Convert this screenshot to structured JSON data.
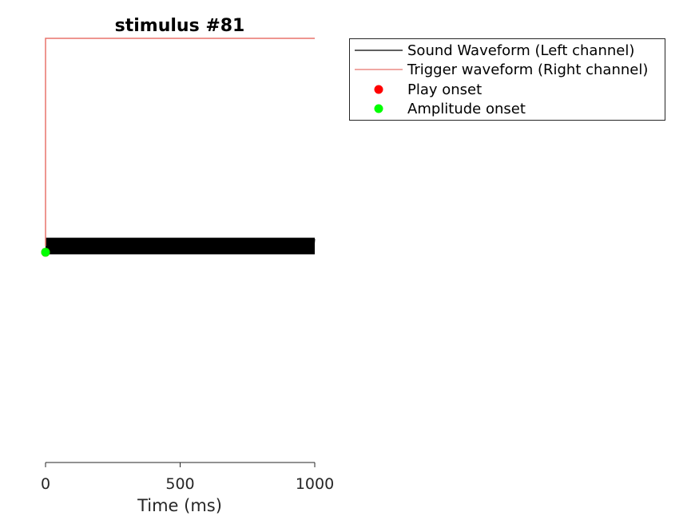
{
  "chart_data": {
    "type": "line",
    "title": "stimulus #81",
    "xlabel": "Time (ms)",
    "ylabel": "",
    "xlim": [
      0,
      1000
    ],
    "ylim": [
      -1,
      1
    ],
    "x_ticks": [
      "0",
      "500",
      "1000"
    ],
    "x_tick_values": [
      0,
      500,
      1000
    ],
    "grid": false,
    "legend_position": "outside-top-right",
    "series": [
      {
        "name": "Sound Waveform (Left channel)",
        "color": "#000000",
        "kind": "dense-waveform",
        "x_range": [
          0,
          1000
        ],
        "amplitude": 0.04,
        "center": 0
      },
      {
        "name": "Trigger waveform (Right channel)",
        "color": "#e8736c",
        "kind": "step",
        "x": [
          0,
          0,
          1000
        ],
        "y": [
          0,
          1,
          1
        ]
      },
      {
        "name": "Play onset",
        "color": "#ff0000",
        "kind": "marker",
        "x": [
          0
        ],
        "y": [
          -0.03
        ]
      },
      {
        "name": "Amplitude onset",
        "color": "#00ff00",
        "kind": "marker",
        "x": [
          0
        ],
        "y": [
          -0.03
        ]
      }
    ]
  }
}
